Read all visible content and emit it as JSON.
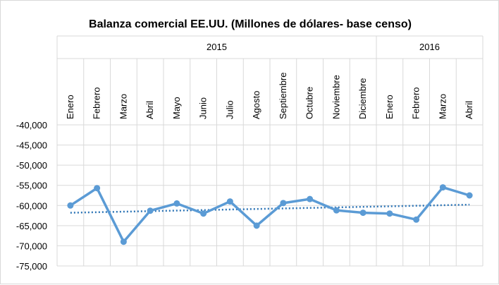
{
  "chart_data": {
    "type": "line",
    "title": "Balanza comercial EE.UU.  (Millones de dólares- base censo)",
    "xlabel": "",
    "ylabel": "",
    "year_groups": [
      {
        "label": "2015",
        "count": 12
      },
      {
        "label": "2016",
        "count": 4
      }
    ],
    "categories": [
      "Enero",
      "Febrero",
      "Marzo",
      "Abril",
      "Mayo",
      "Junio",
      "Julio",
      "Agosto",
      "Septiembre",
      "Octubre",
      "Noviembre",
      "Diciembre",
      "Enero",
      "Febrero",
      "Marzo",
      "Abril"
    ],
    "series": [
      {
        "values": [
          -60000,
          -55700,
          -69000,
          -61300,
          -59500,
          -62000,
          -59000,
          -65000,
          -59400,
          -58400,
          -61200,
          -61800,
          -62000,
          -63500,
          -55500,
          -57500
        ],
        "color": "#5b9bd5"
      }
    ],
    "trendline": {
      "start": -61800,
      "end": -59800,
      "color": "#2e75b6",
      "style": "dotted"
    },
    "ylim": [
      -75000,
      -40000
    ],
    "yticks": [
      -40000,
      -45000,
      -50000,
      -55000,
      -60000,
      -65000,
      -70000,
      -75000
    ],
    "ytick_labels": [
      "-40,000",
      "-45,000",
      "-50,000",
      "-55,000",
      "-60,000",
      "-65,000",
      "-70,000",
      "-75,000"
    ],
    "grid": true
  }
}
